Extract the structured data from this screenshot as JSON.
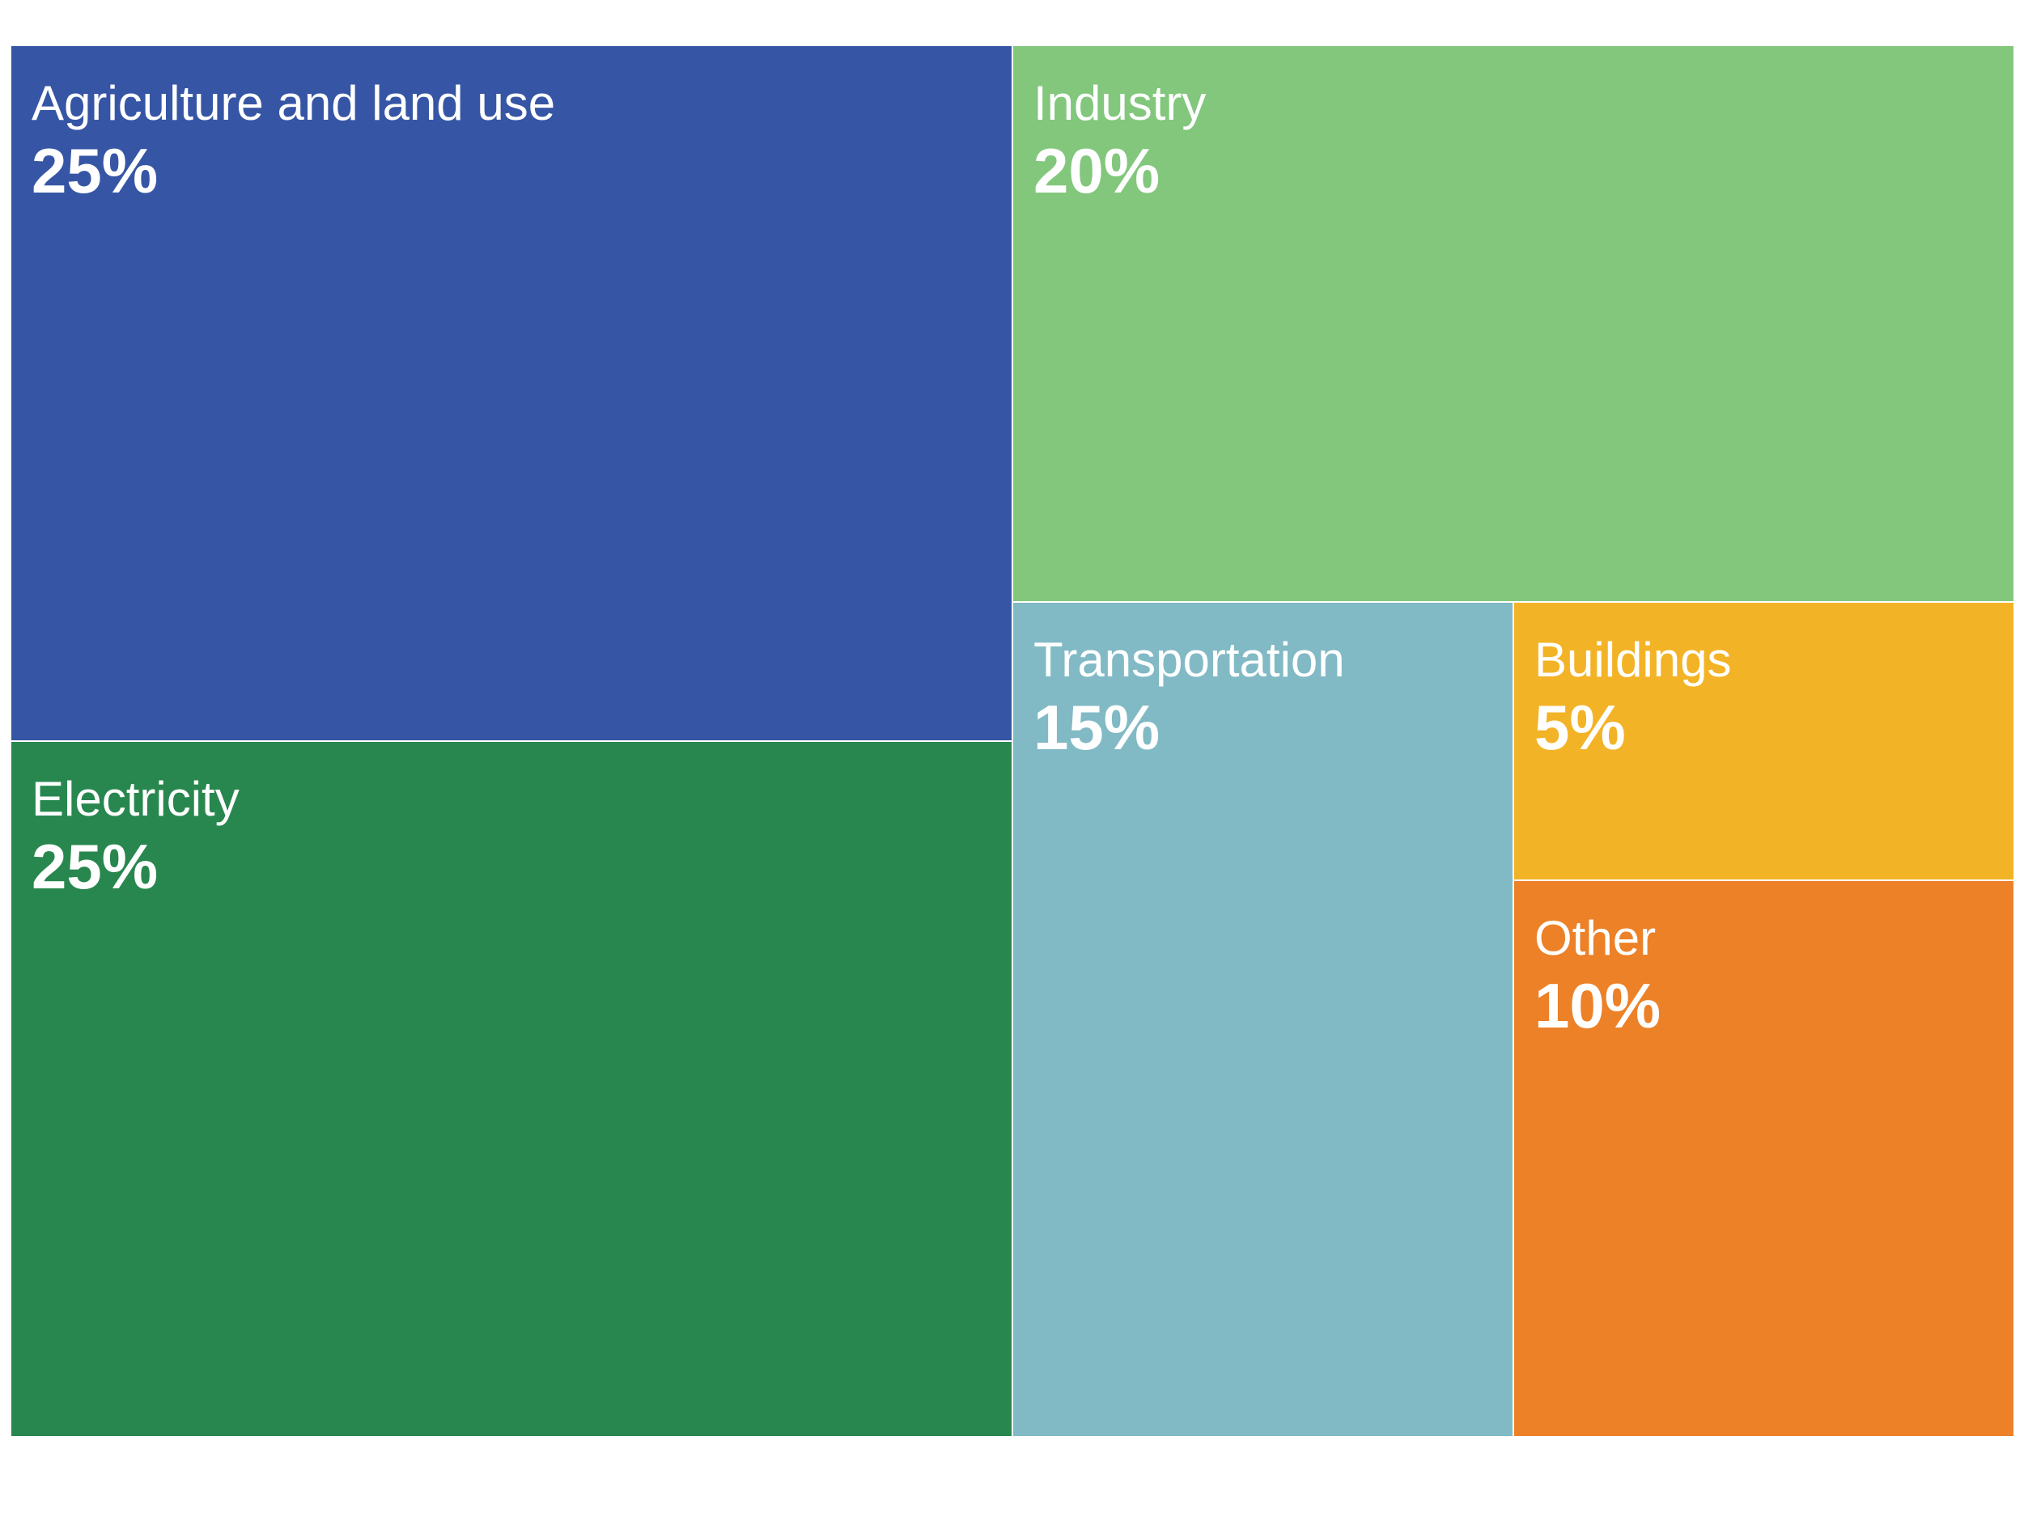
{
  "chart_data": {
    "type": "treemap",
    "items": [
      {
        "label": "Agriculture and land use",
        "value": 25,
        "display": "25%",
        "color": "#3656A5"
      },
      {
        "label": "Electricity",
        "value": 25,
        "display": "25%",
        "color": "#28874E"
      },
      {
        "label": "Industry",
        "value": 20,
        "display": "20%",
        "color": "#82C77C"
      },
      {
        "label": "Transportation",
        "value": 15,
        "display": "15%",
        "color": "#81BAC5"
      },
      {
        "label": "Buildings",
        "value": 5,
        "display": "5%",
        "color": "#F3B326"
      },
      {
        "label": "Other",
        "value": 10,
        "display": "10%",
        "color": "#EC8128"
      }
    ]
  }
}
